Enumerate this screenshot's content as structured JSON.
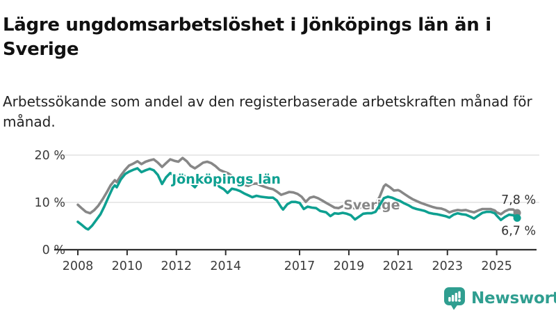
{
  "header": {
    "title": "Lägre ungdomsarbetslöshet i Jönköpings län än i Sverige",
    "subtitle": "Arbetssökande som andel av den registerbaserade arbetskraften månad för månad."
  },
  "footer": {
    "brand": "Newsworthy",
    "logo_icon": "bar-chart-speech-bubble-icon"
  },
  "colors": {
    "jonkoping": "#0EA091",
    "sverige": "#878787",
    "axis": "#2F2F2F",
    "grid": "#DCDCDC",
    "text": "#3B3B3B",
    "brand": "#2F9E90"
  },
  "chart_data": {
    "type": "line",
    "title": "Lägre ungdomsarbetslöshet i Jönköpings län än i Sverige",
    "xlabel": "",
    "ylabel": "",
    "grid": "horizontal",
    "legend_position": "inline-labels",
    "xlim": [
      2007.0,
      2026.6
    ],
    "ylim": [
      0,
      21
    ],
    "x_ticks": [
      {
        "value": 2008,
        "label": "2008"
      },
      {
        "value": 2010,
        "label": "2010"
      },
      {
        "value": 2012,
        "label": "2012"
      },
      {
        "value": 2014,
        "label": "2014"
      },
      {
        "value": 2017,
        "label": "2017"
      },
      {
        "value": 2019,
        "label": "2019"
      },
      {
        "value": 2021,
        "label": "2021"
      },
      {
        "value": 2023,
        "label": "2023"
      },
      {
        "value": 2025,
        "label": "2025"
      }
    ],
    "y_ticks": [
      {
        "value": 0,
        "label": "0 %"
      },
      {
        "value": 10,
        "label": "10 %"
      },
      {
        "value": 20,
        "label": "20 %"
      }
    ],
    "series": [
      {
        "name": "Sverige",
        "key": "sverige",
        "color_key": "sverige",
        "end_label": "7,8 %",
        "end_label_side": "above",
        "label_at": [
          2018.78,
          8.5
        ],
        "points": [
          [
            2008.0,
            9.5
          ],
          [
            2008.17,
            8.7
          ],
          [
            2008.33,
            8.0
          ],
          [
            2008.5,
            7.7
          ],
          [
            2008.67,
            8.4
          ],
          [
            2008.83,
            9.3
          ],
          [
            2009.0,
            10.6
          ],
          [
            2009.17,
            12.1
          ],
          [
            2009.33,
            13.6
          ],
          [
            2009.5,
            14.7
          ],
          [
            2009.58,
            14.3
          ],
          [
            2009.75,
            15.7
          ],
          [
            2009.92,
            16.9
          ],
          [
            2010.08,
            17.8
          ],
          [
            2010.25,
            18.2
          ],
          [
            2010.42,
            18.7
          ],
          [
            2010.58,
            18.1
          ],
          [
            2010.75,
            18.6
          ],
          [
            2010.92,
            18.9
          ],
          [
            2011.08,
            19.1
          ],
          [
            2011.25,
            18.4
          ],
          [
            2011.42,
            17.5
          ],
          [
            2011.58,
            18.3
          ],
          [
            2011.75,
            19.1
          ],
          [
            2011.92,
            18.8
          ],
          [
            2012.08,
            18.6
          ],
          [
            2012.25,
            19.4
          ],
          [
            2012.42,
            18.7
          ],
          [
            2012.58,
            17.7
          ],
          [
            2012.75,
            17.2
          ],
          [
            2012.92,
            17.8
          ],
          [
            2013.08,
            18.4
          ],
          [
            2013.25,
            18.6
          ],
          [
            2013.42,
            18.3
          ],
          [
            2013.58,
            17.7
          ],
          [
            2013.75,
            16.9
          ],
          [
            2013.92,
            16.5
          ],
          [
            2014.08,
            16.2
          ],
          [
            2014.25,
            15.6
          ],
          [
            2014.42,
            14.9
          ],
          [
            2014.58,
            14.3
          ],
          [
            2014.75,
            13.7
          ],
          [
            2014.92,
            13.5
          ],
          [
            2015.08,
            13.9
          ],
          [
            2015.25,
            14.0
          ],
          [
            2015.42,
            13.6
          ],
          [
            2015.58,
            13.3
          ],
          [
            2015.75,
            13.0
          ],
          [
            2015.92,
            12.8
          ],
          [
            2016.08,
            12.3
          ],
          [
            2016.25,
            11.6
          ],
          [
            2016.42,
            11.9
          ],
          [
            2016.58,
            12.2
          ],
          [
            2016.75,
            12.1
          ],
          [
            2016.92,
            11.8
          ],
          [
            2017.08,
            11.2
          ],
          [
            2017.25,
            10.1
          ],
          [
            2017.42,
            11.0
          ],
          [
            2017.58,
            11.2
          ],
          [
            2017.75,
            10.9
          ],
          [
            2017.92,
            10.4
          ],
          [
            2018.08,
            9.9
          ],
          [
            2018.25,
            9.4
          ],
          [
            2018.42,
            8.9
          ],
          [
            2018.58,
            8.8
          ],
          [
            2018.75,
            9.2
          ],
          [
            2018.92,
            9.3
          ],
          [
            2019.08,
            9.1
          ],
          [
            2019.25,
            8.7
          ],
          [
            2019.42,
            8.8
          ],
          [
            2019.58,
            9.2
          ],
          [
            2019.75,
            9.4
          ],
          [
            2019.92,
            9.3
          ],
          [
            2020.08,
            9.6
          ],
          [
            2020.25,
            11.2
          ],
          [
            2020.42,
            13.4
          ],
          [
            2020.5,
            13.8
          ],
          [
            2020.67,
            13.2
          ],
          [
            2020.83,
            12.5
          ],
          [
            2021.0,
            12.6
          ],
          [
            2021.08,
            12.4
          ],
          [
            2021.25,
            11.8
          ],
          [
            2021.42,
            11.2
          ],
          [
            2021.58,
            10.7
          ],
          [
            2021.75,
            10.3
          ],
          [
            2021.92,
            9.9
          ],
          [
            2022.08,
            9.6
          ],
          [
            2022.25,
            9.3
          ],
          [
            2022.42,
            9.0
          ],
          [
            2022.58,
            8.8
          ],
          [
            2022.75,
            8.7
          ],
          [
            2022.92,
            8.4
          ],
          [
            2023.08,
            7.9
          ],
          [
            2023.25,
            8.2
          ],
          [
            2023.42,
            8.4
          ],
          [
            2023.58,
            8.3
          ],
          [
            2023.75,
            8.4
          ],
          [
            2023.92,
            8.1
          ],
          [
            2024.08,
            7.9
          ],
          [
            2024.25,
            8.3
          ],
          [
            2024.42,
            8.6
          ],
          [
            2024.58,
            8.6
          ],
          [
            2024.75,
            8.6
          ],
          [
            2024.92,
            8.3
          ],
          [
            2025.0,
            7.9
          ],
          [
            2025.17,
            7.5
          ],
          [
            2025.33,
            8.1
          ],
          [
            2025.5,
            8.5
          ],
          [
            2025.67,
            8.5
          ],
          [
            2025.83,
            7.8
          ]
        ]
      },
      {
        "name": "Jönköpings län",
        "key": "jonkoping",
        "color_key": "jonkoping",
        "end_label": "6,7 %",
        "end_label_side": "below",
        "label_at": [
          2011.81,
          14.0
        ],
        "points": [
          [
            2008.0,
            5.9
          ],
          [
            2008.17,
            5.2
          ],
          [
            2008.33,
            4.5
          ],
          [
            2008.42,
            4.3
          ],
          [
            2008.58,
            5.1
          ],
          [
            2008.75,
            6.3
          ],
          [
            2008.92,
            7.5
          ],
          [
            2009.08,
            9.2
          ],
          [
            2009.25,
            11.2
          ],
          [
            2009.42,
            13.1
          ],
          [
            2009.5,
            13.6
          ],
          [
            2009.58,
            13.2
          ],
          [
            2009.75,
            14.9
          ],
          [
            2009.92,
            16.0
          ],
          [
            2010.08,
            16.5
          ],
          [
            2010.25,
            16.9
          ],
          [
            2010.42,
            17.2
          ],
          [
            2010.58,
            16.4
          ],
          [
            2010.75,
            16.8
          ],
          [
            2010.92,
            17.1
          ],
          [
            2011.08,
            16.8
          ],
          [
            2011.25,
            15.8
          ],
          [
            2011.42,
            13.9
          ],
          [
            2011.58,
            15.3
          ],
          [
            2011.75,
            16.2
          ],
          [
            2011.92,
            15.6
          ],
          [
            2012.08,
            15.2
          ],
          [
            2012.25,
            16.0
          ],
          [
            2012.42,
            15.1
          ],
          [
            2012.58,
            14.0
          ],
          [
            2012.75,
            13.2
          ],
          [
            2012.92,
            14.4
          ],
          [
            2013.08,
            15.0
          ],
          [
            2013.25,
            15.3
          ],
          [
            2013.42,
            15.0
          ],
          [
            2013.58,
            14.3
          ],
          [
            2013.75,
            13.3
          ],
          [
            2013.92,
            12.8
          ],
          [
            2014.08,
            12.0
          ],
          [
            2014.25,
            12.9
          ],
          [
            2014.42,
            12.7
          ],
          [
            2014.58,
            12.4
          ],
          [
            2014.75,
            11.9
          ],
          [
            2014.92,
            11.5
          ],
          [
            2015.08,
            11.1
          ],
          [
            2015.25,
            11.4
          ],
          [
            2015.42,
            11.2
          ],
          [
            2015.58,
            11.1
          ],
          [
            2015.75,
            11.0
          ],
          [
            2015.92,
            11.0
          ],
          [
            2016.08,
            10.4
          ],
          [
            2016.25,
            9.0
          ],
          [
            2016.33,
            8.5
          ],
          [
            2016.5,
            9.6
          ],
          [
            2016.67,
            10.1
          ],
          [
            2016.83,
            10.1
          ],
          [
            2017.0,
            9.9
          ],
          [
            2017.17,
            8.6
          ],
          [
            2017.33,
            9.1
          ],
          [
            2017.5,
            8.9
          ],
          [
            2017.67,
            8.8
          ],
          [
            2017.83,
            8.2
          ],
          [
            2018.08,
            7.9
          ],
          [
            2018.25,
            7.1
          ],
          [
            2018.42,
            7.7
          ],
          [
            2018.58,
            7.6
          ],
          [
            2018.75,
            7.8
          ],
          [
            2018.92,
            7.6
          ],
          [
            2019.08,
            7.3
          ],
          [
            2019.25,
            6.4
          ],
          [
            2019.42,
            7.0
          ],
          [
            2019.58,
            7.6
          ],
          [
            2019.75,
            7.7
          ],
          [
            2019.92,
            7.7
          ],
          [
            2020.08,
            8.0
          ],
          [
            2020.25,
            9.4
          ],
          [
            2020.42,
            10.9
          ],
          [
            2020.58,
            11.2
          ],
          [
            2020.75,
            11.0
          ],
          [
            2020.92,
            10.6
          ],
          [
            2021.08,
            10.3
          ],
          [
            2021.25,
            9.8
          ],
          [
            2021.42,
            9.4
          ],
          [
            2021.58,
            8.9
          ],
          [
            2021.75,
            8.6
          ],
          [
            2021.92,
            8.4
          ],
          [
            2022.08,
            8.2
          ],
          [
            2022.25,
            7.8
          ],
          [
            2022.42,
            7.6
          ],
          [
            2022.58,
            7.5
          ],
          [
            2022.75,
            7.3
          ],
          [
            2022.92,
            7.1
          ],
          [
            2023.08,
            6.8
          ],
          [
            2023.25,
            7.4
          ],
          [
            2023.42,
            7.7
          ],
          [
            2023.58,
            7.5
          ],
          [
            2023.75,
            7.4
          ],
          [
            2023.92,
            7.0
          ],
          [
            2024.08,
            6.6
          ],
          [
            2024.25,
            7.2
          ],
          [
            2024.42,
            7.8
          ],
          [
            2024.58,
            8.0
          ],
          [
            2024.75,
            8.0
          ],
          [
            2024.92,
            7.7
          ],
          [
            2025.0,
            7.2
          ],
          [
            2025.17,
            6.3
          ],
          [
            2025.33,
            6.9
          ],
          [
            2025.5,
            7.4
          ],
          [
            2025.67,
            7.3
          ],
          [
            2025.83,
            6.7
          ]
        ]
      }
    ]
  }
}
